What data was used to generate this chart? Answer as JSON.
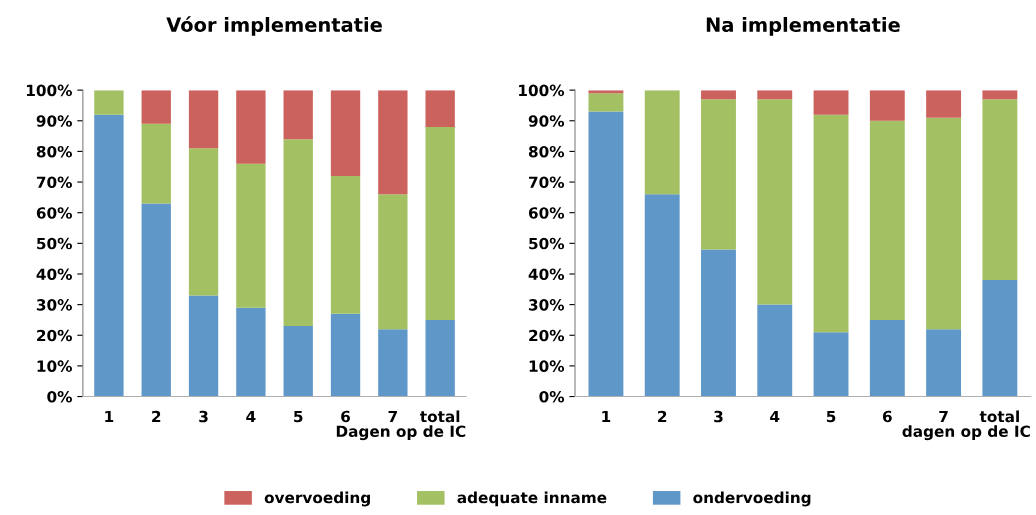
{
  "chart_data": [
    {
      "type": "bar",
      "title": "Vóor implementatie",
      "xlabel": "Dagen op de IC",
      "stacked": true,
      "categories": [
        "1",
        "2",
        "3",
        "4",
        "5",
        "6",
        "7",
        "total"
      ],
      "ylim": [
        0,
        100
      ],
      "yticks": [
        {
          "value": 0,
          "label": "0%"
        },
        {
          "value": 10,
          "label": "10%"
        },
        {
          "value": 20,
          "label": "20%"
        },
        {
          "value": 30,
          "label": "30%"
        },
        {
          "value": 40,
          "label": "40%"
        },
        {
          "value": 50,
          "label": "50%"
        },
        {
          "value": 60,
          "label": "60%"
        },
        {
          "value": 70,
          "label": "70%"
        },
        {
          "value": 80,
          "label": "80%"
        },
        {
          "value": 90,
          "label": "90%"
        },
        {
          "value": 100,
          "label": "100%"
        }
      ],
      "grid": false,
      "legend": "bottom",
      "series": [
        {
          "name": "ondervoeding",
          "color": "#5f97c9",
          "values": [
            92,
            63,
            33,
            29,
            23,
            27,
            22,
            25
          ]
        },
        {
          "name": "adequate inname",
          "color": "#a3c063",
          "values": [
            8,
            26,
            48,
            47,
            61,
            45,
            44,
            63
          ]
        },
        {
          "name": "overvoeding",
          "color": "#cc625e",
          "values": [
            0,
            11,
            19,
            24,
            16,
            28,
            34,
            12
          ]
        }
      ]
    },
    {
      "type": "bar",
      "title": "Na implementatie",
      "xlabel": "dagen op de IC",
      "stacked": true,
      "categories": [
        "1",
        "2",
        "3",
        "4",
        "5",
        "6",
        "7",
        "total"
      ],
      "ylim": [
        0,
        100
      ],
      "yticks": [
        {
          "value": 0,
          "label": "0%"
        },
        {
          "value": 10,
          "label": "10%"
        },
        {
          "value": 20,
          "label": "20%"
        },
        {
          "value": 30,
          "label": "30%"
        },
        {
          "value": 40,
          "label": "40%"
        },
        {
          "value": 50,
          "label": "50%"
        },
        {
          "value": 60,
          "label": "60%"
        },
        {
          "value": 70,
          "label": "70%"
        },
        {
          "value": 80,
          "label": "80%"
        },
        {
          "value": 90,
          "label": "90%"
        },
        {
          "value": 100,
          "label": "100%"
        }
      ],
      "grid": false,
      "series": [
        {
          "color": "#5f97c9",
          "values": [
            93,
            66,
            48,
            30,
            21,
            25,
            22,
            38
          ]
        },
        {
          "color": "#a3c063",
          "values": [
            6,
            34,
            49,
            67,
            71,
            65,
            69,
            59
          ]
        },
        {
          "color": "#cc625e",
          "values": [
            1,
            0,
            3,
            3,
            8,
            10,
            9,
            3
          ]
        }
      ]
    }
  ]
}
